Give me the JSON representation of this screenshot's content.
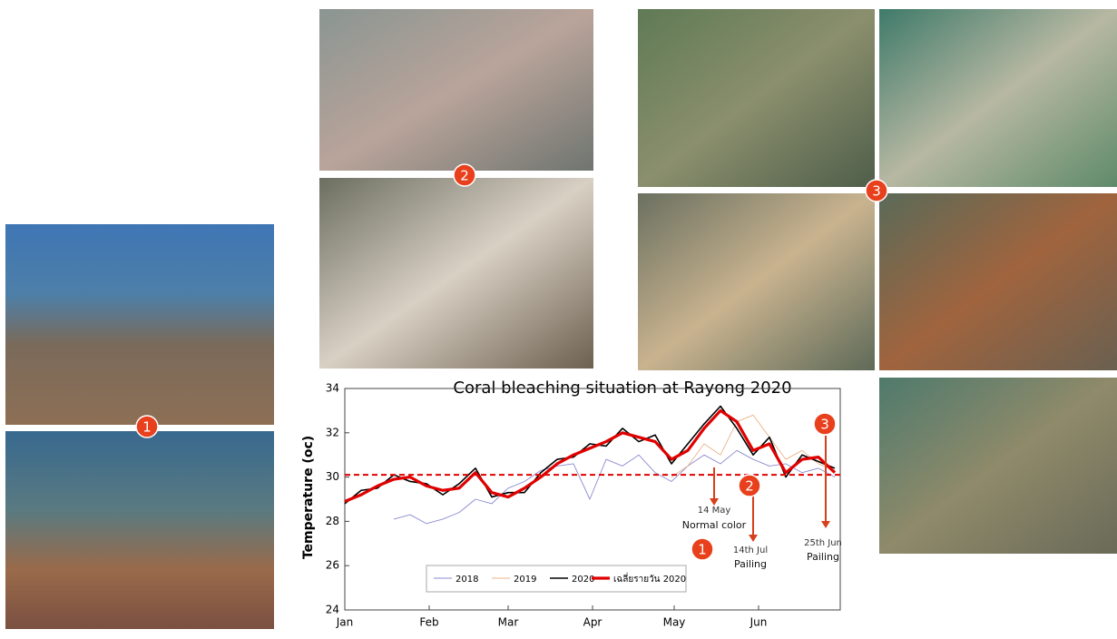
{
  "photo_markers": [
    "1",
    "2",
    "3"
  ],
  "chart_data": {
    "type": "line",
    "title": "Coral bleaching situation at Rayong 2020",
    "y_label": "Temperature (oc)",
    "x": [
      0,
      6,
      12,
      18,
      24,
      30,
      36,
      42,
      48,
      54,
      60,
      66,
      72,
      78,
      84,
      90,
      96,
      102,
      108,
      114,
      120,
      126,
      132,
      138,
      144,
      150,
      156,
      162,
      168,
      174,
      180
    ],
    "xlim": [
      0,
      182
    ],
    "xticks": [
      {
        "value": 0,
        "label": "Jan"
      },
      {
        "value": 31,
        "label": "Feb"
      },
      {
        "value": 60,
        "label": "Mar"
      },
      {
        "value": 91,
        "label": "Apr"
      },
      {
        "value": 121,
        "label": "May"
      },
      {
        "value": 152,
        "label": "Jun"
      }
    ],
    "ylim": [
      24,
      34
    ],
    "yticks": [
      24,
      26,
      28,
      30,
      32,
      34
    ],
    "threshold": 30.1,
    "threshold_color": "#e00000",
    "series": [
      {
        "name": "2018",
        "color": "#8a8ad0",
        "values": [
          null,
          null,
          null,
          28.1,
          28.3,
          27.9,
          28.1,
          28.4,
          29.0,
          28.8,
          29.5,
          29.8,
          30.3,
          30.5,
          30.6,
          29.0,
          30.8,
          30.5,
          31.0,
          30.2,
          29.8,
          30.5,
          31.0,
          30.6,
          31.2,
          30.8,
          30.5,
          30.6,
          30.2,
          30.4,
          30.0
        ]
      },
      {
        "name": "2019",
        "color": "#e8b48a",
        "values": [
          null,
          null,
          null,
          null,
          null,
          null,
          null,
          null,
          null,
          null,
          null,
          null,
          null,
          null,
          null,
          null,
          null,
          null,
          null,
          null,
          30.0,
          30.5,
          31.5,
          31.0,
          32.5,
          32.8,
          31.8,
          30.8,
          31.2,
          30.6,
          30.3
        ]
      },
      {
        "name": "2020",
        "color": "#000000",
        "values": [
          28.8,
          29.4,
          29.5,
          30.1,
          29.8,
          29.7,
          29.2,
          29.7,
          30.4,
          29.1,
          29.3,
          29.3,
          30.2,
          30.8,
          30.9,
          31.5,
          31.4,
          32.2,
          31.6,
          31.9,
          30.6,
          31.5,
          32.4,
          33.2,
          32.2,
          31.0,
          31.8,
          30.0,
          31.0,
          30.7,
          30.4
        ]
      },
      {
        "name": "เฉลี่ยรายวัน 2020",
        "color": "#e00000",
        "values": [
          28.9,
          29.2,
          29.6,
          29.9,
          30.0,
          29.6,
          29.4,
          29.5,
          30.2,
          29.3,
          29.1,
          29.5,
          30.0,
          30.6,
          31.0,
          31.3,
          31.6,
          32.0,
          31.8,
          31.6,
          30.8,
          31.2,
          32.2,
          33.0,
          32.5,
          31.2,
          31.5,
          30.2,
          30.8,
          30.9,
          30.2
        ]
      }
    ],
    "annotations": [
      {
        "date": "14 May",
        "note": "Normal color"
      },
      {
        "date": "14th Jul",
        "note": "Pailing"
      },
      {
        "date": "25th Jun",
        "note": "Pailing"
      }
    ]
  }
}
